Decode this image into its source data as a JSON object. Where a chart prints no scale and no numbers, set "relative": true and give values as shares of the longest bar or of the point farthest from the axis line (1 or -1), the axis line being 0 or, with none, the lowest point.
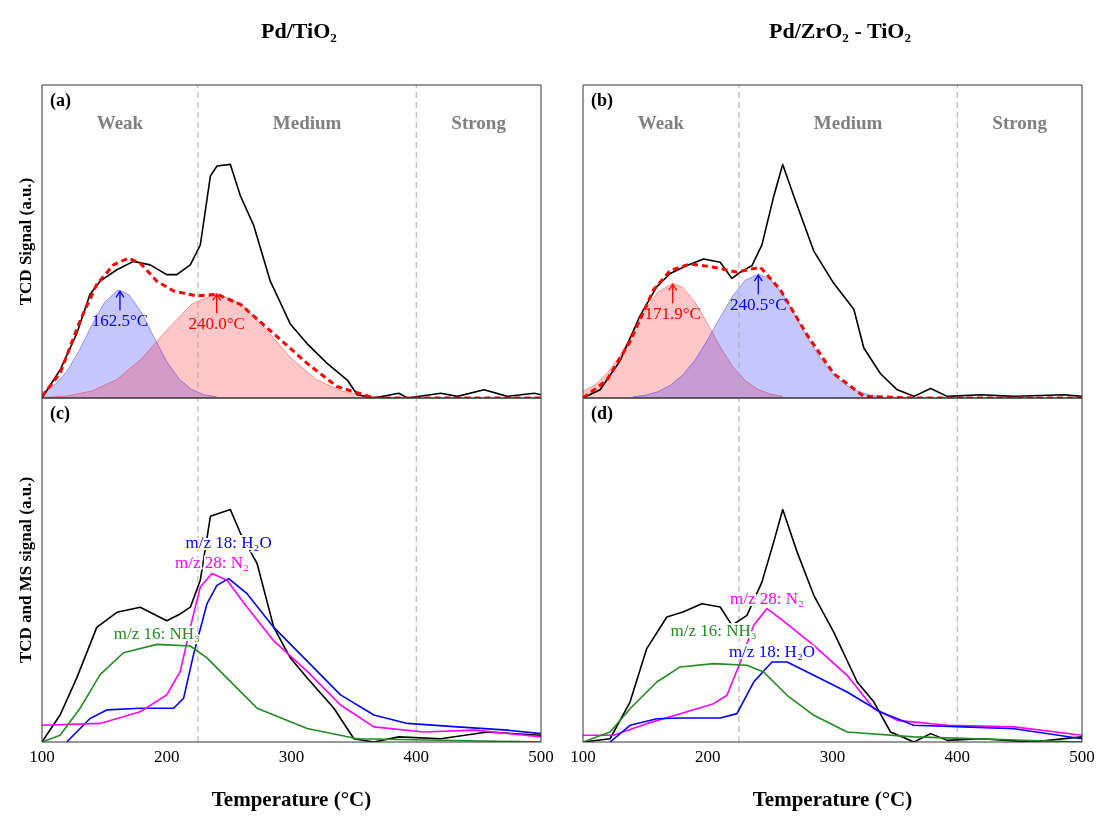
{
  "chart_data": [
    {
      "type": "line",
      "title": "Pd/TiO₂",
      "ylabel": "TCD Signal (a.u.)",
      "relative": true,
      "xlim": [
        100,
        500
      ],
      "xticks": [
        100,
        200,
        300,
        400,
        500
      ],
      "tick_labels": false,
      "marker": "none",
      "line_style": "solid",
      "ref_lines": [
        {
          "axis": "x",
          "value": 225,
          "color": "#aaaaaa",
          "line_style": "dashed"
        },
        {
          "axis": "x",
          "value": 400,
          "color": "#aaaaaa",
          "line_style": "dashed"
        }
      ],
      "annotations": [
        "(a)",
        "Weak",
        "Medium",
        "Strong",
        {
          "text": "162.5°C",
          "x": 162.5,
          "y": 0.461
        },
        {
          "text": "240.0°C",
          "x": 240,
          "y": 0.448
        }
      ],
      "series": [
        {
          "type": "area",
          "color": "#0000ff",
          "x": [
            100,
            110,
            120,
            130,
            140,
            150,
            160,
            162.5,
            170,
            180,
            190,
            200,
            210,
            220,
            230,
            240
          ],
          "values": [
            0.023,
            0.055,
            0.115,
            0.205,
            0.312,
            0.409,
            0.459,
            0.461,
            0.441,
            0.364,
            0.258,
            0.156,
            0.081,
            0.036,
            0.014,
            0.005
          ]
        },
        {
          "type": "area",
          "color": "#ff0000",
          "x": [
            100,
            120,
            140,
            160,
            180,
            200,
            220,
            240,
            260,
            280,
            300,
            320,
            340,
            360,
            380,
            400
          ],
          "values": [
            0.002,
            0.009,
            0.03,
            0.079,
            0.169,
            0.291,
            0.402,
            0.448,
            0.402,
            0.291,
            0.169,
            0.079,
            0.03,
            0.009,
            0.002,
            0
          ]
        },
        {
          "color": "#000000",
          "x": [
            100,
            114.5,
            127.8,
            138.5,
            146.6,
            160,
            173.3,
            186.7,
            200,
            208,
            218.9,
            226.9,
            235,
            240.3,
            251,
            259,
            269.7,
            283,
            299,
            312.6,
            328.6,
            344.7,
            352.7,
            366,
            386,
            392.9,
            419.6,
            433,
            454.4,
            473,
            494.6,
            500
          ],
          "values": [
            0,
            0.12,
            0.275,
            0.444,
            0.5,
            0.549,
            0.585,
            0.57,
            0.528,
            0.528,
            0.57,
            0.655,
            0.951,
            0.993,
            1,
            0.866,
            0.739,
            0.5,
            0.317,
            0.232,
            0.148,
            0.077,
            0.014,
            0,
            0.02,
            0,
            0.02,
            0.007,
            0.035,
            0.007,
            0.02,
            0.014
          ]
        },
        {
          "color": "#ff0000",
          "line_style": "dashed",
          "x": [
            100,
            114.5,
            130.5,
            143.9,
            157.3,
            169.3,
            178.7,
            192.1,
            205.5,
            224.2,
            240.3,
            259,
            285.8,
            312.6,
            336.5,
            366,
            500
          ],
          "values": [
            0.007,
            0.106,
            0.331,
            0.486,
            0.57,
            0.599,
            0.577,
            0.5,
            0.458,
            0.437,
            0.444,
            0.401,
            0.275,
            0.148,
            0.049,
            0,
            0
          ]
        }
      ]
    },
    {
      "type": "line",
      "title": "Pd/ZrO₂ - TiO₂",
      "relative": true,
      "xlim": [
        100,
        500
      ],
      "xticks": [
        100,
        200,
        300,
        400,
        500
      ],
      "tick_labels": false,
      "marker": "none",
      "line_style": "solid",
      "ref_lines": [
        {
          "axis": "x",
          "value": 225,
          "color": "#aaaaaa",
          "line_style": "dashed"
        },
        {
          "axis": "x",
          "value": 400,
          "color": "#aaaaaa",
          "line_style": "dashed"
        }
      ],
      "annotations": [
        "(b)",
        "Weak",
        "Medium",
        "Strong",
        {
          "text": "171.9°C",
          "x": 171.9,
          "y": 0.491
        },
        {
          "text": "240.5°C",
          "x": 240.5,
          "y": 0.53
        }
      ],
      "series": [
        {
          "type": "area",
          "color": "#ff0000",
          "x": [
            100,
            110,
            120,
            130,
            140,
            150,
            160,
            171.9,
            180,
            190,
            200,
            210,
            220,
            230,
            240,
            250,
            260
          ],
          "values": [
            0.028,
            0.058,
            0.11,
            0.185,
            0.279,
            0.376,
            0.454,
            0.491,
            0.473,
            0.409,
            0.317,
            0.219,
            0.135,
            0.075,
            0.037,
            0.017,
            0.007
          ]
        },
        {
          "type": "area",
          "color": "#0000ff",
          "x": [
            140,
            150,
            160,
            170,
            180,
            190,
            200,
            210,
            220,
            230,
            240.5,
            250,
            260,
            270,
            280,
            290,
            300,
            310,
            320,
            330,
            340
          ],
          "values": [
            0.005,
            0.012,
            0.027,
            0.054,
            0.099,
            0.164,
            0.25,
            0.346,
            0.437,
            0.504,
            0.53,
            0.509,
            0.445,
            0.355,
            0.259,
            0.172,
            0.104,
            0.058,
            0.029,
            0.013,
            0.005
          ]
        },
        {
          "color": "#000000",
          "x": [
            100,
            113.7,
            129.7,
            145.8,
            159.2,
            169.9,
            183.3,
            196.7,
            210,
            219.4,
            226.1,
            235.5,
            243.5,
            252.9,
            260.1,
            269,
            285,
            301,
            317.1,
            325.1,
            338.5,
            351.9,
            365.3,
            378.7,
            392,
            418.8,
            445.6,
            485.7,
            500
          ],
          "values": [
            0,
            0.035,
            0.159,
            0.353,
            0.477,
            0.533,
            0.567,
            0.595,
            0.581,
            0.512,
            0.539,
            0.567,
            0.657,
            0.864,
            1,
            0.864,
            0.629,
            0.491,
            0.38,
            0.214,
            0.104,
            0.035,
            0.007,
            0.041,
            0.007,
            0.014,
            0.007,
            0.014,
            0.007
          ]
        },
        {
          "color": "#ff0000",
          "line_style": "dashed",
          "x": [
            100,
            119,
            137.7,
            156.5,
            169.9,
            186,
            204.7,
            223.4,
            242.1,
            258.2,
            279.6,
            301,
            325.1,
            365,
            500
          ],
          "values": [
            0,
            0.076,
            0.242,
            0.463,
            0.546,
            0.574,
            0.56,
            0.539,
            0.56,
            0.463,
            0.27,
            0.104,
            0.007,
            0,
            0
          ]
        }
      ]
    },
    {
      "type": "line",
      "ylabel": "TCD and MS signal (a.u.)",
      "xlabel": "Temperature (°C)",
      "relative": true,
      "xlim": [
        100,
        500
      ],
      "xticks": [
        100,
        200,
        300,
        400,
        500
      ],
      "tick_labels": "x",
      "marker": "none",
      "line_style": "solid",
      "ref_lines": [
        {
          "axis": "x",
          "value": 225,
          "color": "#aaaaaa",
          "line_style": "dashed"
        },
        {
          "axis": "x",
          "value": 400,
          "color": "#aaaaaa",
          "line_style": "dashed"
        }
      ],
      "annotations": [
        "(c)"
      ],
      "series": [
        {
          "color": "#000000",
          "x": [
            100,
            114.5,
            127.8,
            143.9,
            160,
            178.7,
            189.4,
            200,
            210.8,
            218.9,
            226.9,
            235,
            251,
            259,
            272.4,
            285.8,
            299,
            312.6,
            334,
            350,
            366,
            386,
            419.6,
            457,
            500
          ],
          "values": [
            0,
            0.116,
            0.275,
            0.493,
            0.558,
            0.58,
            0.551,
            0.522,
            0.551,
            0.58,
            0.696,
            0.971,
            1,
            0.899,
            0.768,
            0.493,
            0.362,
            0.275,
            0.145,
            0.014,
            0,
            0.022,
            0.014,
            0.043,
            0.029
          ]
        },
        {
          "name": "m/z 18: H₂O",
          "color": "#0000ff",
          "x": [
            119.8,
            138.5,
            151.9,
            178.7,
            205.5,
            213.5,
            221.5,
            232.2,
            240.2,
            249.6,
            264.4,
            285.8,
            312.6,
            339.3,
            366,
            392.9,
            433,
            473.2,
            500
          ],
          "values": [
            0,
            0.101,
            0.138,
            0.145,
            0.145,
            0.188,
            0.377,
            0.594,
            0.674,
            0.703,
            0.638,
            0.493,
            0.348,
            0.203,
            0.116,
            0.08,
            0.065,
            0.051,
            0.036
          ]
        },
        {
          "name": "m/z 28: N₂",
          "color": "#ff00ff",
          "x": [
            100,
            146.6,
            178.7,
            200,
            210.8,
            218.9,
            226.9,
            236.3,
            248.3,
            264.4,
            285.8,
            312.6,
            339.3,
            366,
            406,
            446.6,
            500
          ],
          "values": [
            0.072,
            0.08,
            0.13,
            0.203,
            0.304,
            0.493,
            0.667,
            0.725,
            0.696,
            0.58,
            0.435,
            0.304,
            0.159,
            0.065,
            0.043,
            0.051,
            0.022
          ]
        },
        {
          "name": "m/z 16: NH₃",
          "color": "#228b22",
          "x": [
            100,
            114.5,
            130.5,
            146.6,
            165.3,
            192.1,
            218.9,
            232.2,
            248.3,
            272.4,
            312.6,
            352.7,
            500
          ],
          "values": [
            0,
            0.029,
            0.145,
            0.29,
            0.384,
            0.42,
            0.413,
            0.362,
            0.275,
            0.145,
            0.058,
            0.014,
            0
          ]
        }
      ]
    },
    {
      "type": "line",
      "xlabel": "Temperature (°C)",
      "relative": true,
      "xlim": [
        100,
        500
      ],
      "xticks": [
        100,
        200,
        300,
        400,
        500
      ],
      "tick_labels": "x",
      "marker": "none",
      "line_style": "solid",
      "ref_lines": [
        {
          "axis": "x",
          "value": 225,
          "color": "#aaaaaa",
          "line_style": "dashed"
        },
        {
          "axis": "x",
          "value": 400,
          "color": "#aaaaaa",
          "line_style": "dashed"
        }
      ],
      "annotations": [
        "(d)"
      ],
      "series": [
        {
          "color": "#000000",
          "x": [
            100,
            121.7,
            137.7,
            151.1,
            167.2,
            180.6,
            195.3,
            210,
            219.4,
            231.4,
            243.5,
            252.9,
            260.1,
            271.6,
            285,
            301,
            319.8,
            333.2,
            346.5,
            365.3,
            378.7,
            392,
            418.8,
            459,
            500
          ],
          "values": [
            0,
            0.014,
            0.172,
            0.402,
            0.538,
            0.56,
            0.595,
            0.581,
            0.502,
            0.545,
            0.689,
            0.861,
            1,
            0.818,
            0.631,
            0.473,
            0.258,
            0.172,
            0.043,
            0,
            0.036,
            0.007,
            0.014,
            0,
            0.022
          ]
        },
        {
          "name": "m/z 28: N₂",
          "color": "#ff00ff",
          "x": [
            100,
            124.4,
            151.1,
            177.9,
            204.7,
            215.4,
            226.1,
            236.8,
            247.5,
            258.2,
            285,
            311.7,
            333.2,
            351.9,
            392,
            445.6,
            500
          ],
          "values": [
            0.029,
            0.029,
            0.079,
            0.122,
            0.165,
            0.201,
            0.344,
            0.502,
            0.574,
            0.531,
            0.416,
            0.287,
            0.143,
            0.093,
            0.072,
            0.065,
            0.029
          ]
        },
        {
          "name": "m/z 18: H₂O",
          "color": "#0000ff",
          "x": [
            121.7,
            137.7,
            159.2,
            177.9,
            210,
            223.4,
            236.8,
            251.5,
            263.6,
            285,
            311.7,
            338.5,
            365,
            405.4,
            445.6,
            500
          ],
          "values": [
            0,
            0.072,
            0.1,
            0.103,
            0.103,
            0.122,
            0.258,
            0.344,
            0.344,
            0.287,
            0.215,
            0.129,
            0.072,
            0.065,
            0.057,
            0.014
          ]
        },
        {
          "name": "m/z 16: NH₃",
          "color": "#228b22",
          "x": [
            100,
            121.7,
            137.7,
            159.2,
            177.9,
            204.7,
            231.4,
            244.8,
            263.6,
            285,
            311.7,
            365,
            500
          ],
          "values": [
            0,
            0.043,
            0.143,
            0.258,
            0.323,
            0.337,
            0.33,
            0.301,
            0.201,
            0.115,
            0.043,
            0.022,
            0
          ]
        }
      ]
    }
  ]
}
